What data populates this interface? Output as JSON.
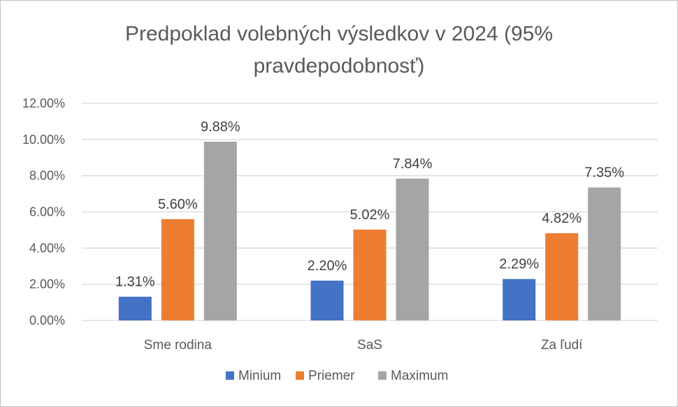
{
  "chart_data": {
    "type": "bar",
    "title_lines": [
      "Predpoklad volebných výsledkov v 2024 (95%",
      "pravdepodobnosť)"
    ],
    "categories": [
      "Sme rodina",
      "SaS",
      "Za ľudí"
    ],
    "series": [
      {
        "name": "Minium",
        "values": [
          1.31,
          2.2,
          2.29
        ],
        "labels": [
          "1.31%",
          "2.20%",
          "2.29%"
        ],
        "color": "#4472c4"
      },
      {
        "name": "Priemer",
        "values": [
          5.6,
          5.02,
          4.82
        ],
        "labels": [
          "5.60%",
          "5.02%",
          "4.82%"
        ],
        "color": "#ed7d31"
      },
      {
        "name": "Maximum",
        "values": [
          9.88,
          7.84,
          7.35
        ],
        "labels": [
          "9.88%",
          "7.84%",
          "7.35%"
        ],
        "color": "#a5a5a5"
      }
    ],
    "ylim": [
      0,
      12
    ],
    "yticks": [
      0,
      2,
      4,
      6,
      8,
      10,
      12
    ],
    "ytick_labels": [
      "0.00%",
      "2.00%",
      "4.00%",
      "6.00%",
      "8.00%",
      "10.00%",
      "12.00%"
    ],
    "grid": true,
    "gridline_color": "#d9d9d9",
    "legend_position": "bottom"
  }
}
